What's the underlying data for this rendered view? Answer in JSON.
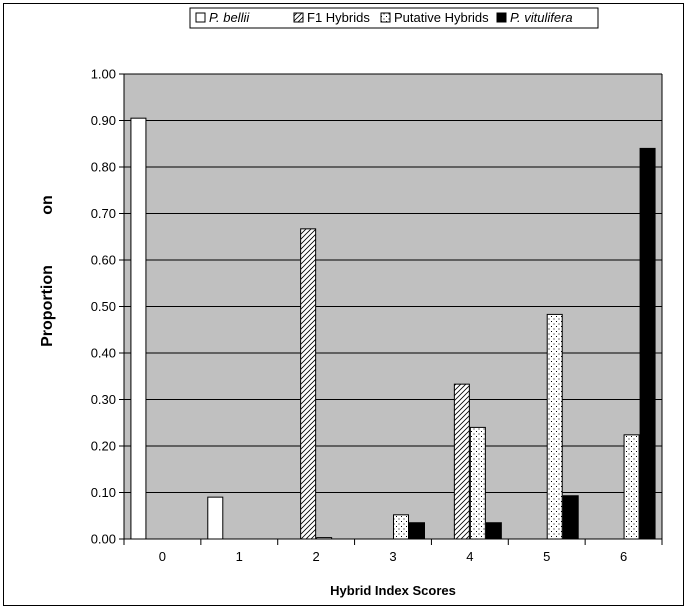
{
  "chart_data": {
    "type": "bar",
    "title": "",
    "xlabel": "Hybrid Index Scores",
    "ylabel_left": "Proportion",
    "ylabel_right": "on",
    "categories": [
      "0",
      "1",
      "2",
      "3",
      "4",
      "5",
      "6"
    ],
    "ylim": [
      0,
      1
    ],
    "yticks": [
      "0.00",
      "0.10",
      "0.20",
      "0.30",
      "0.40",
      "0.50",
      "0.60",
      "0.70",
      "0.80",
      "0.90",
      "1.00"
    ],
    "grid": true,
    "legend_position": "top",
    "series": [
      {
        "name": "P. bellii",
        "italic": true,
        "pattern": "white",
        "values": [
          0.905,
          0.09,
          0.0,
          0.0,
          0.0,
          0.0,
          0.0
        ]
      },
      {
        "name": "F1 Hybrids",
        "italic": false,
        "pattern": "hatch",
        "values": [
          0.0,
          0.0,
          0.667,
          0.0,
          0.333,
          0.0,
          0.0
        ]
      },
      {
        "name": "Putative Hybrids",
        "italic": false,
        "pattern": "dots",
        "values": [
          0.0,
          0.0,
          0.003,
          0.052,
          0.24,
          0.483,
          0.224
        ]
      },
      {
        "name": "P. vitulifera",
        "italic": true,
        "pattern": "black",
        "values": [
          0.0,
          0.0,
          0.0,
          0.035,
          0.035,
          0.093,
          0.84
        ]
      }
    ],
    "colors": {
      "plot_background": "#c0c0c0",
      "bar_outline": "#000000",
      "black_fill": "#000000"
    }
  }
}
